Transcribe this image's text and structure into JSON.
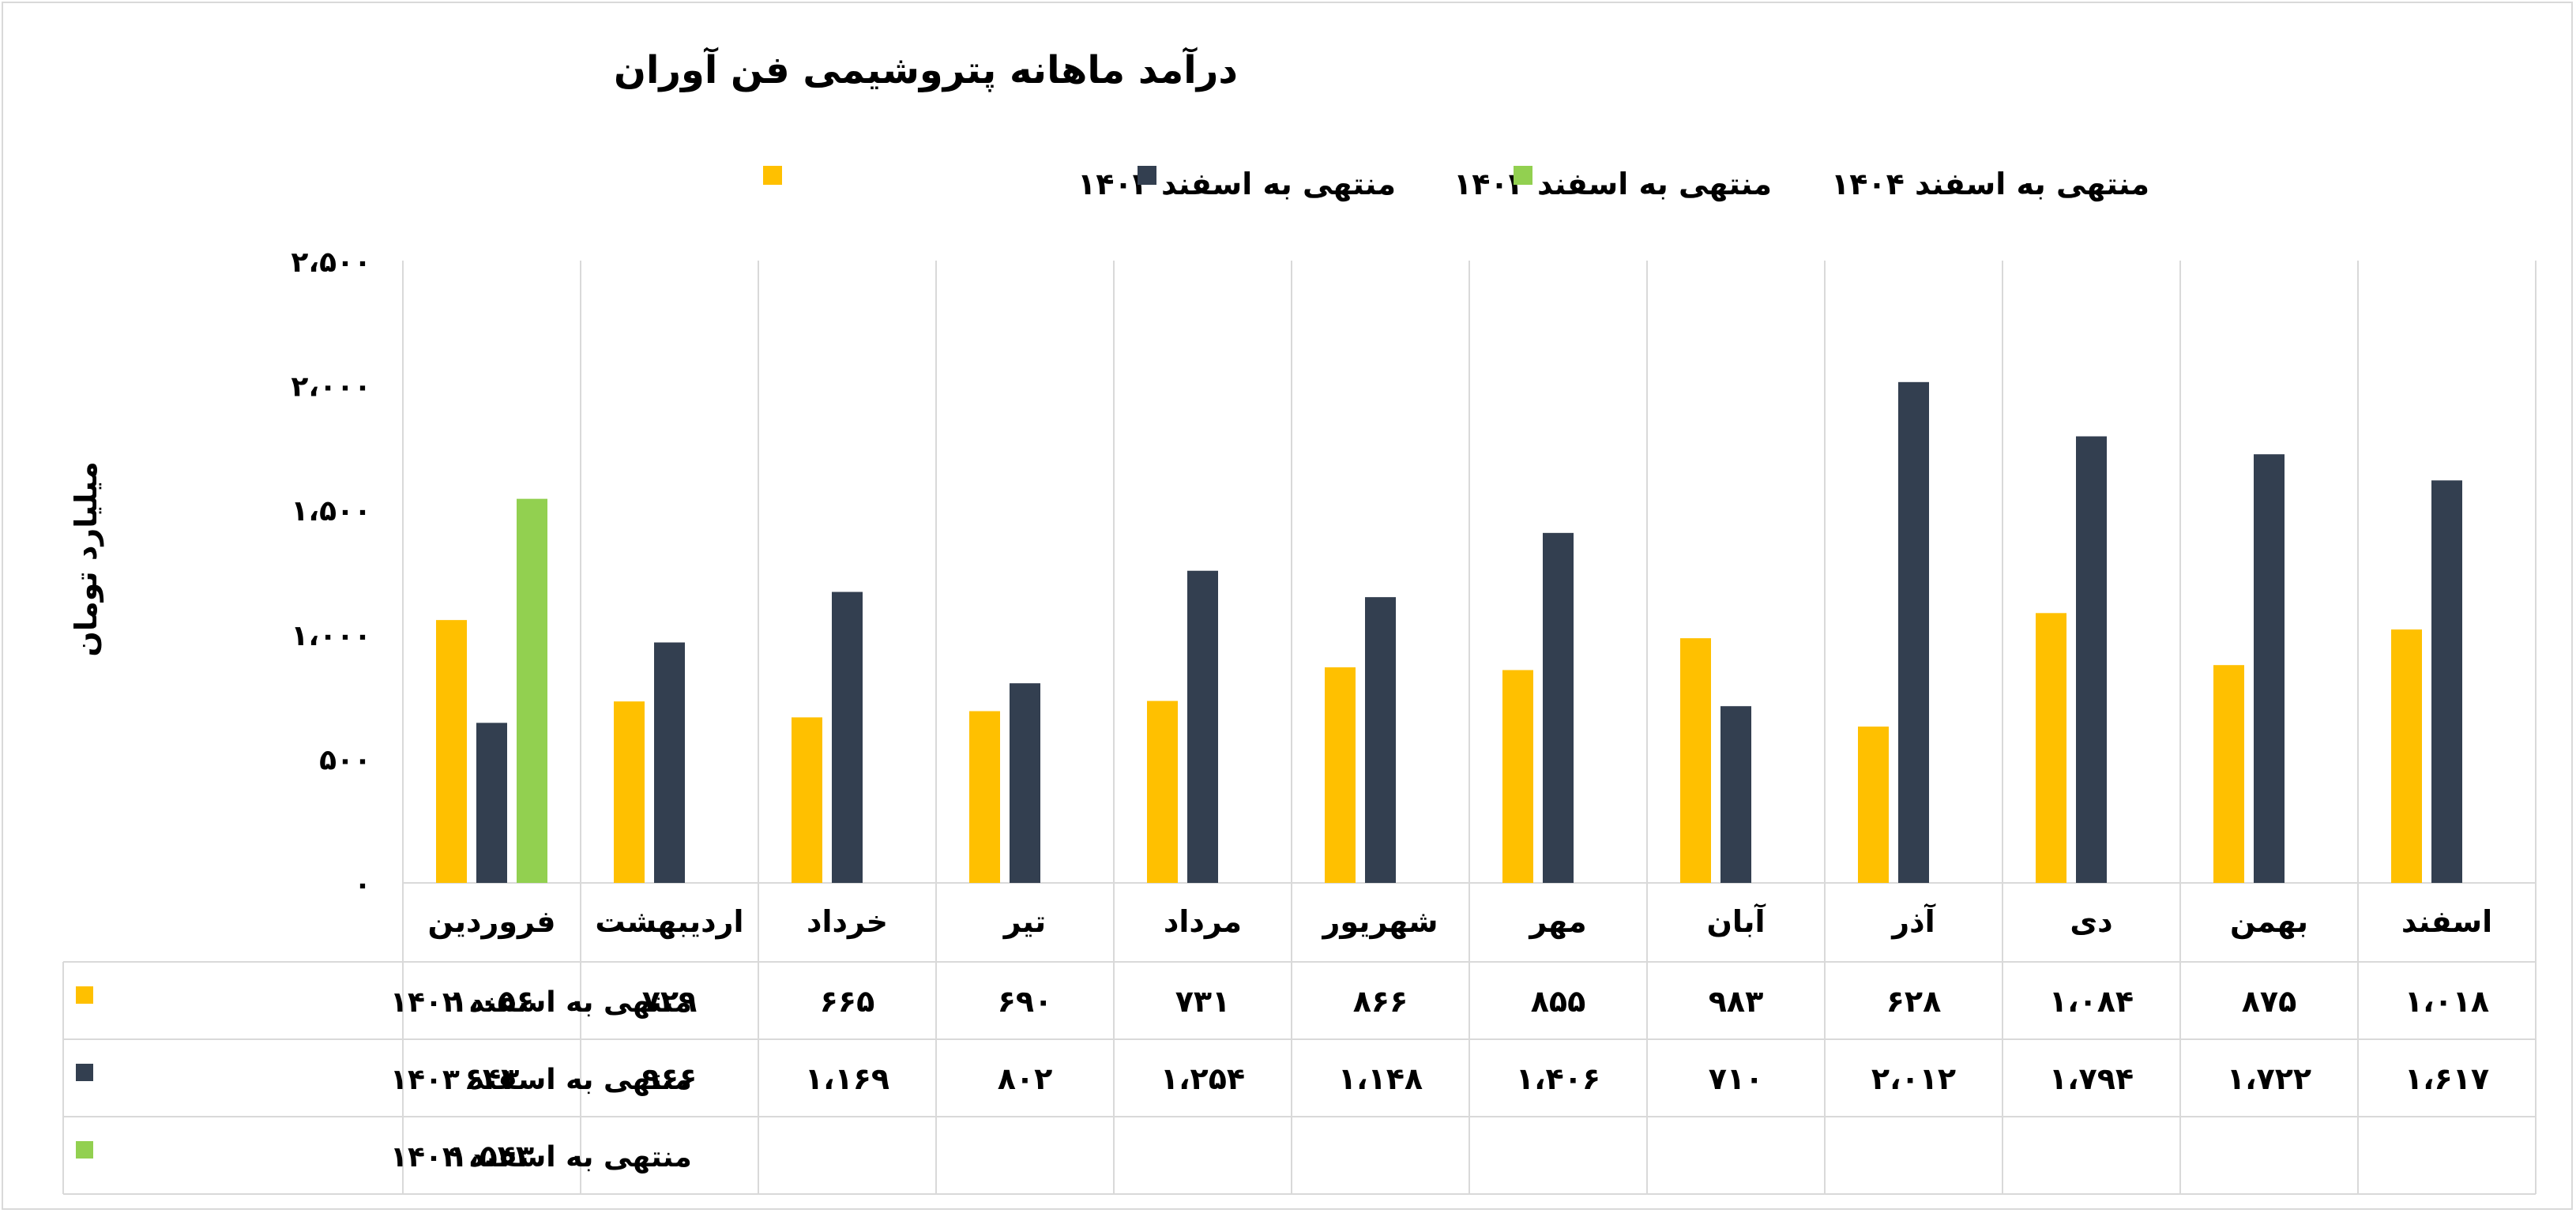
{
  "chart_data": {
    "type": "bar",
    "title": "درآمد ماهانه پتروشیمی فن آوران",
    "ylabel": "میلیارد تومان",
    "ylim": [
      0,
      2500
    ],
    "yticks": [
      0,
      500,
      1000,
      1500,
      2000,
      2500
    ],
    "ytick_labels": [
      "۰",
      "۵۰۰",
      "۱،۰۰۰",
      "۱،۵۰۰",
      "۲،۰۰۰",
      "۲،۵۰۰"
    ],
    "legend_position": "top",
    "grid": "vertical-category-separators",
    "categories": [
      "فروردین",
      "اردیبهشت",
      "خرداد",
      "تیر",
      "مرداد",
      "شهریور",
      "مهر",
      "آبان",
      "آذر",
      "دی",
      "بهمن",
      "اسفند"
    ],
    "series": [
      {
        "name": "منتهی به اسفند ۱۴۰۲",
        "color": "#FFC000",
        "values": [
          1056,
          729,
          665,
          690,
          731,
          866,
          855,
          983,
          628,
          1084,
          875,
          1018
        ],
        "labels": [
          "۱،۰۵۶",
          "۷۲۹",
          "۶۶۵",
          "۶۹۰",
          "۷۳۱",
          "۸۶۶",
          "۸۵۵",
          "۹۸۳",
          "۶۲۸",
          "۱،۰۸۴",
          "۸۷۵",
          "۱،۰۱۸"
        ]
      },
      {
        "name": "منتهی به اسفند ۱۴۰۳",
        "color": "#333F50",
        "values": [
          643,
          966,
          1169,
          802,
          1254,
          1148,
          1406,
          710,
          2012,
          1794,
          1722,
          1617
        ],
        "labels": [
          "۶۴۳",
          "۹۶۶",
          "۱،۱۶۹",
          "۸۰۲",
          "۱،۲۵۴",
          "۱،۱۴۸",
          "۱،۴۰۶",
          "۷۱۰",
          "۲،۰۱۲",
          "۱،۷۹۴",
          "۱،۷۲۲",
          "۱،۶۱۷"
        ]
      },
      {
        "name": "منتهی به اسفند ۱۴۰۴",
        "color": "#92D050",
        "values": [
          1543,
          null,
          null,
          null,
          null,
          null,
          null,
          null,
          null,
          null,
          null,
          null
        ],
        "labels": [
          "۱،۵۴۳",
          "",
          "",
          "",
          "",
          "",
          "",
          "",
          "",
          "",
          "",
          ""
        ]
      }
    ]
  }
}
